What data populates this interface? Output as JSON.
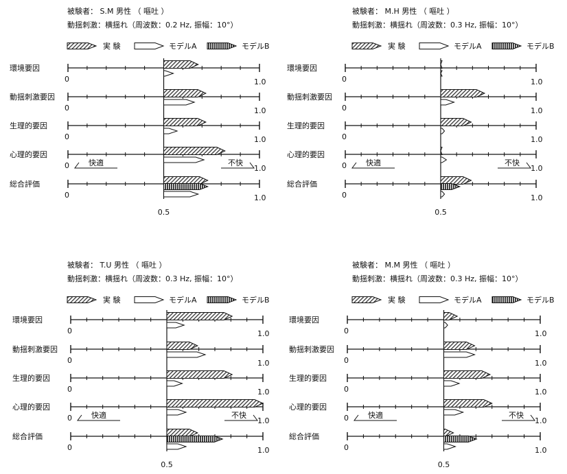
{
  "legend": {
    "experiment": "実 験",
    "model_a": "モデルA",
    "model_b": "モデルB"
  },
  "factors": [
    "環境要因",
    "動揺刺激要因",
    "生理的要因",
    "心理的要因",
    "総合評価"
  ],
  "axis": {
    "zero": "0",
    "one": "1.0",
    "mid": "0.5",
    "comfort": "快適",
    "discomfort": "不快"
  },
  "colors": {
    "axis": "#111111",
    "experiment": "#333333",
    "model_b": "#111111"
  },
  "chart_data": [
    {
      "type": "bar",
      "subject": "被験者： S.M 男性 （ 嘔吐 ）",
      "stimulus": "動揺刺激：横揺れ（周波数：0.2 Hz, 振幅：10°）",
      "categories": [
        "環境要因",
        "動揺刺激要因",
        "生理的要因",
        "心理的要因",
        "総合評価"
      ],
      "xlim": [
        0,
        1.0
      ],
      "series": [
        {
          "name": "実 験",
          "values": [
            0.68,
            0.72,
            0.72,
            0.82,
            0.73
          ]
        },
        {
          "name": "モデルA",
          "values": [
            0.55,
            0.66,
            0.57,
            0.71,
            0.68
          ]
        },
        {
          "name": "モデルB",
          "values": [
            null,
            null,
            null,
            null,
            0.73
          ]
        }
      ]
    },
    {
      "type": "bar",
      "subject": "被験者： M.H 男性 （ 嘔吐 ）",
      "stimulus": "動揺刺激：横揺れ（周波数：0.3 Hz, 振幅：10°）",
      "categories": [
        "環境要因",
        "動揺刺激要因",
        "生理的要因",
        "心理的要因",
        "総合評価"
      ],
      "xlim": [
        0,
        1.0
      ],
      "series": [
        {
          "name": "実 験",
          "values": [
            0.5,
            0.73,
            0.66,
            0.5,
            0.66
          ]
        },
        {
          "name": "モデルA",
          "values": [
            0.5,
            0.57,
            0.52,
            0.53,
            0.52
          ]
        },
        {
          "name": "モデルB",
          "values": [
            null,
            null,
            null,
            null,
            0.6
          ]
        }
      ]
    },
    {
      "type": "bar",
      "subject": "被験者： T.U 男性 （ 嘔吐 ）",
      "stimulus": "動揺刺激：横揺れ（周波数：0.3 Hz, 振幅：10°）",
      "categories": [
        "環境要因",
        "動揺刺激要因",
        "生理的要因",
        "心理的要因",
        "総合評価"
      ],
      "xlim": [
        0,
        1.0
      ],
      "series": [
        {
          "name": "実 験",
          "values": [
            0.84,
            0.66,
            0.84,
            1.0,
            0.66
          ]
        },
        {
          "name": "モデルA",
          "values": [
            0.59,
            0.7,
            0.58,
            0.6,
            0.6
          ]
        },
        {
          "name": "モデルB",
          "values": [
            null,
            null,
            null,
            null,
            0.79
          ]
        }
      ]
    },
    {
      "type": "bar",
      "subject": "被験者： M.M 男性 （ 嘔吐 ）",
      "stimulus": "動揺刺激：横揺れ（周波数：0.3 Hz, 振幅：10°）",
      "categories": [
        "環境要因",
        "動揺刺激要因",
        "生理的要因",
        "心理的要因",
        "総合評価"
      ],
      "xlim": [
        0,
        1.0
      ],
      "series": [
        {
          "name": "実 験",
          "values": [
            0.57,
            0.66,
            0.74,
            0.75,
            0.55
          ]
        },
        {
          "name": "モデルA",
          "values": [
            0.52,
            0.66,
            0.58,
            0.6,
            0.56
          ]
        },
        {
          "name": "モデルB",
          "values": [
            null,
            null,
            null,
            null,
            0.67
          ]
        }
      ]
    }
  ]
}
